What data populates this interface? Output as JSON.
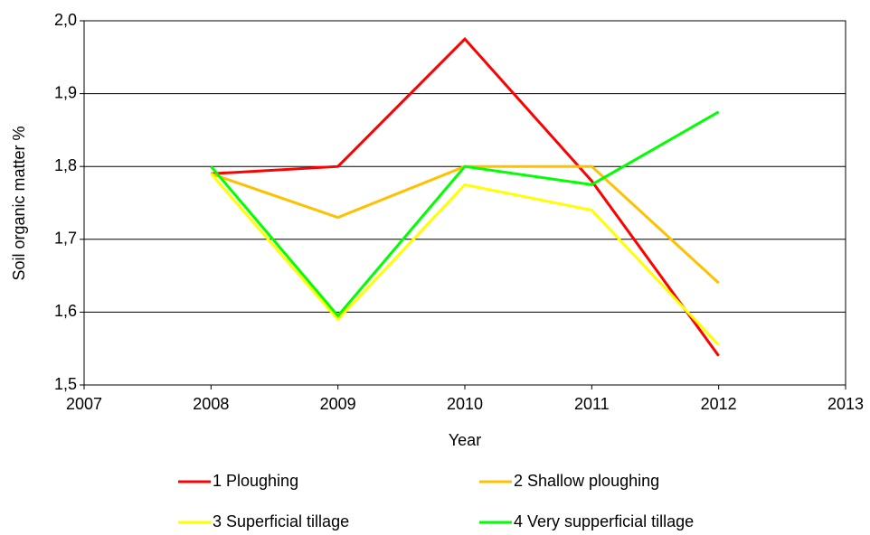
{
  "chart_data": {
    "type": "line",
    "x_label": "Year",
    "y_label": "Soil organic matter %",
    "x": [
      2008,
      2009,
      2010,
      2011,
      2012
    ],
    "series": [
      {
        "name": "1 Ploughing",
        "color": "#ff0000",
        "values": [
          1.79,
          1.8,
          1.975,
          1.78,
          1.54
        ]
      },
      {
        "name": "2 Shallow ploughing",
        "color": "#ffc000",
        "values": [
          1.79,
          1.73,
          1.8,
          1.8,
          1.64
        ]
      },
      {
        "name": "3 Superficial tillage",
        "color": "#ffff00",
        "values": [
          1.79,
          1.59,
          1.775,
          1.74,
          1.555
        ]
      },
      {
        "name": "4 Very supperficial tillage",
        "color": "#00ff00",
        "values": [
          1.8,
          1.595,
          1.8,
          1.775,
          1.875
        ]
      }
    ],
    "xlim": [
      2007,
      2013
    ],
    "xticks": [
      2007,
      2008,
      2009,
      2010,
      2011,
      2012,
      2013
    ],
    "ylim": [
      1.5,
      2.0
    ],
    "yticks": [
      {
        "value": 1.5,
        "label": "1,5"
      },
      {
        "value": 1.6,
        "label": "1,6"
      },
      {
        "value": 1.7,
        "label": "1,7"
      },
      {
        "value": 1.8,
        "label": "1,8"
      },
      {
        "value": 1.9,
        "label": "1,9"
      },
      {
        "value": 2.0,
        "label": "2,0"
      }
    ],
    "grid": true
  }
}
